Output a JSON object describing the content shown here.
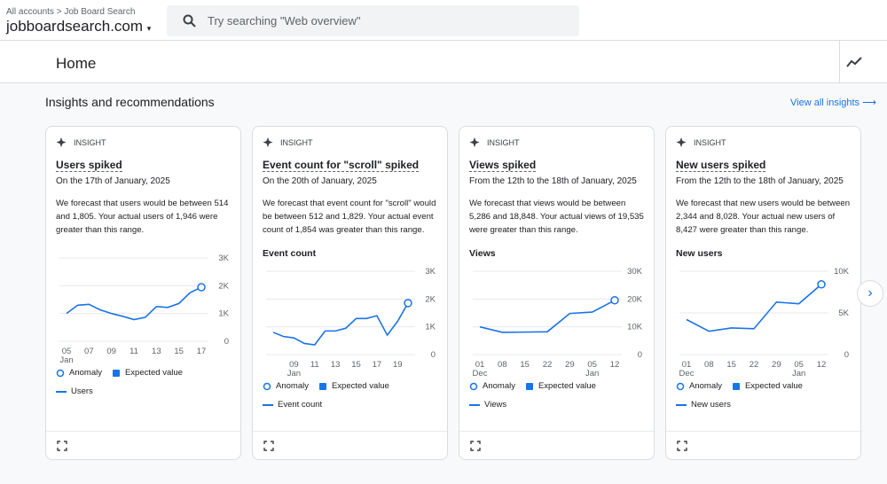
{
  "header": {
    "breadcrumb": [
      "All accounts",
      "Job Board Search"
    ],
    "account": "jobboardsearch.com",
    "search_placeholder": "Try searching \"Web overview\""
  },
  "page_title": "Home",
  "section": {
    "title": "Insights and recommendations",
    "link": "View all insights"
  },
  "cards": [
    {
      "badge": "INSIGHT",
      "title": "Users spiked",
      "date": "On the 17th of January, 2025",
      "text": "We forecast that users would be between 514 and 1,805. Your actual users of 1,946 were greater than this range.",
      "chart": {
        "type": "line",
        "categories": [
          "05",
          null,
          "07",
          null,
          "09",
          null,
          "11",
          null,
          "13",
          null,
          "15",
          null,
          "17"
        ],
        "x_sublabels": [
          "Jan",
          null,
          null,
          null,
          null,
          null,
          null,
          null,
          null,
          null,
          null,
          null,
          null
        ],
        "series": [
          {
            "name": "Users",
            "color": "#1a73e8",
            "values": [
              1000,
              1300,
              1330,
              1130,
              1000,
              900,
              780,
              860,
              1250,
              1220,
              1360,
              1750,
              1946
            ]
          }
        ],
        "ylim": [
          0,
          3000
        ],
        "yticks": [
          0,
          {
            "value": 1000,
            "label": "1K"
          },
          {
            "value": 2000,
            "label": "2K"
          },
          {
            "value": 3000,
            "label": "3K"
          }
        ],
        "legend": [
          "Anomaly",
          "Expected value"
        ]
      }
    },
    {
      "badge": "INSIGHT",
      "title": "Event count for \"scroll\" spiked",
      "date": "On the 20th of January, 2025",
      "text": "We forecast that event count for \"scroll\" would be between 512 and 1,829. Your actual event count of 1,854 was greater than this range.",
      "chart": {
        "type": "line",
        "label": "Event count",
        "categories": [
          null,
          null,
          "09",
          null,
          "11",
          null,
          "13",
          null,
          "15",
          null,
          "17",
          null,
          "19",
          null
        ],
        "x_sublabels": [
          null,
          null,
          "Jan",
          null,
          null,
          null,
          null,
          null,
          null,
          null,
          null,
          null,
          null,
          null
        ],
        "series": [
          {
            "name": "Event count",
            "color": "#1a73e8",
            "values": [
              800,
              650,
              600,
              400,
              350,
              850,
              850,
              950,
              1300,
              1300,
              1400,
              700,
              1200,
              1854
            ]
          }
        ],
        "ylim": [
          0,
          3000
        ],
        "yticks": [
          0,
          {
            "value": 1000,
            "label": "1K"
          },
          {
            "value": 2000,
            "label": "2K"
          },
          {
            "value": 3000,
            "label": "3K"
          }
        ],
        "legend": [
          "Anomaly",
          "Expected value"
        ]
      }
    },
    {
      "badge": "INSIGHT",
      "title": "Views spiked",
      "date": "From the 12th to the 18th of January, 2025",
      "text": "We forecast that views would be between 5,286 and 18,848. Your actual views of 19,535 were greater than this range.",
      "chart": {
        "type": "line",
        "label": "Views",
        "categories": [
          "01",
          "08",
          "15",
          "22",
          "29",
          "05",
          "12"
        ],
        "x_sublabels": [
          "Dec",
          null,
          null,
          null,
          null,
          "Jan",
          null
        ],
        "series": [
          {
            "name": "Views",
            "color": "#1a73e8",
            "values": [
              10000,
              8000,
              8100,
              8200,
              14800,
              15300,
              19535
            ]
          }
        ],
        "ylim": [
          0,
          30000
        ],
        "yticks": [
          0,
          {
            "value": 10000,
            "label": "10K"
          },
          {
            "value": 20000,
            "label": "20K"
          },
          {
            "value": 30000,
            "label": "30K"
          }
        ],
        "legend": [
          "Anomaly",
          "Expected value"
        ]
      }
    },
    {
      "badge": "INSIGHT",
      "title": "New users spiked",
      "date": "From the 12th to the 18th of January, 2025",
      "text": "We forecast that new users would be between 2,344 and 8,028. Your actual new users of 8,427 were greater than this range.",
      "chart": {
        "type": "line",
        "label": "New users",
        "categories": [
          "01",
          "08",
          "15",
          "22",
          "29",
          "05",
          "12"
        ],
        "x_sublabels": [
          "Dec",
          null,
          null,
          null,
          null,
          "Jan",
          null
        ],
        "series": [
          {
            "name": "New users",
            "color": "#1a73e8",
            "values": [
              4200,
              2800,
              3200,
              3100,
              6300,
              6100,
              8427
            ]
          }
        ],
        "ylim": [
          0,
          10000
        ],
        "yticks": [
          0,
          {
            "value": 5000,
            "label": "5K"
          },
          {
            "value": 10000,
            "label": "10K"
          }
        ],
        "legend": [
          "Anomaly",
          "Expected value"
        ]
      }
    }
  ]
}
